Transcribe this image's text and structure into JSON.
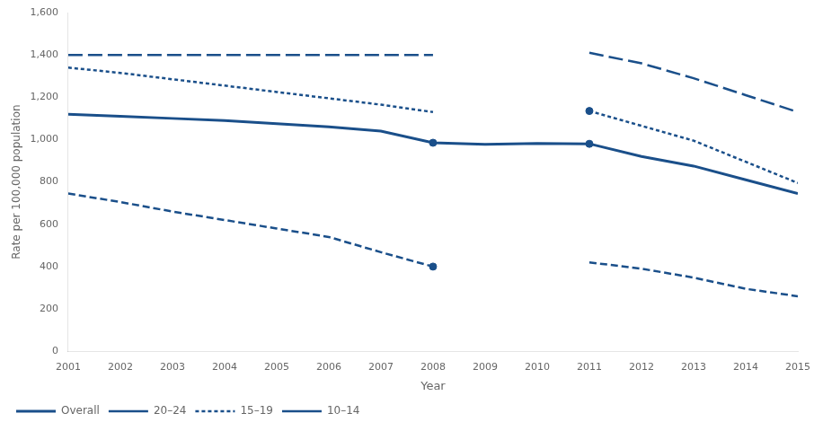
{
  "chart_data": {
    "type": "line",
    "x_label": "Year",
    "y_label": "Rate per 100,000 population",
    "x": [
      2001,
      2002,
      2003,
      2004,
      2005,
      2006,
      2007,
      2008,
      2009,
      2010,
      2011,
      2012,
      2013,
      2014,
      2015
    ],
    "series": [
      {
        "name": "Overall",
        "color": "#1a4f8a",
        "line_style": "solid",
        "values": [
          1120,
          1110,
          1100,
          1090,
          1075,
          1060,
          1040,
          985,
          978,
          982,
          980,
          920,
          875,
          810,
          745
        ]
      },
      {
        "name": "20–24",
        "color": "#1a4f8a",
        "line_style": "long_dash",
        "values": [
          1400,
          1400,
          1400,
          1400,
          1400,
          1400,
          1400,
          1400,
          null,
          null,
          1410,
          1360,
          1290,
          1210,
          1130
        ]
      },
      {
        "name": "15–19",
        "color": "#1a4f8a",
        "line_style": "dotted",
        "values": [
          1340,
          1315,
          1285,
          1255,
          1225,
          1195,
          1165,
          1130,
          null,
          null,
          1135,
          1065,
          995,
          895,
          795
        ]
      },
      {
        "name": "10–14",
        "color": "#1a4f8a",
        "line_style": "dashed",
        "values": [
          745,
          705,
          660,
          620,
          580,
          540,
          468,
          400,
          null,
          null,
          420,
          390,
          348,
          295,
          260
        ]
      },
      {
        "type": "scatter",
        "color": "#1a4f8a",
        "marker": "circle",
        "x": [
          2008,
          2008,
          2011,
          2011
        ],
        "values": [
          985,
          400,
          980,
          1135
        ]
      }
    ],
    "xlim": [
      2001,
      2015
    ],
    "xticks": [
      2001,
      2002,
      2003,
      2004,
      2005,
      2006,
      2007,
      2008,
      2009,
      2010,
      2011,
      2012,
      2013,
      2014,
      2015
    ],
    "ylim": [
      0,
      1600
    ],
    "yticks": [
      0,
      200,
      400,
      600,
      800,
      {
        "value": 1000,
        "label": "1,000"
      },
      {
        "value": 1200,
        "label": "1,200"
      },
      {
        "value": 1400,
        "label": "1,400"
      },
      {
        "value": 1600,
        "label": "1,600"
      }
    ],
    "grid": false,
    "legend": "lower left"
  }
}
